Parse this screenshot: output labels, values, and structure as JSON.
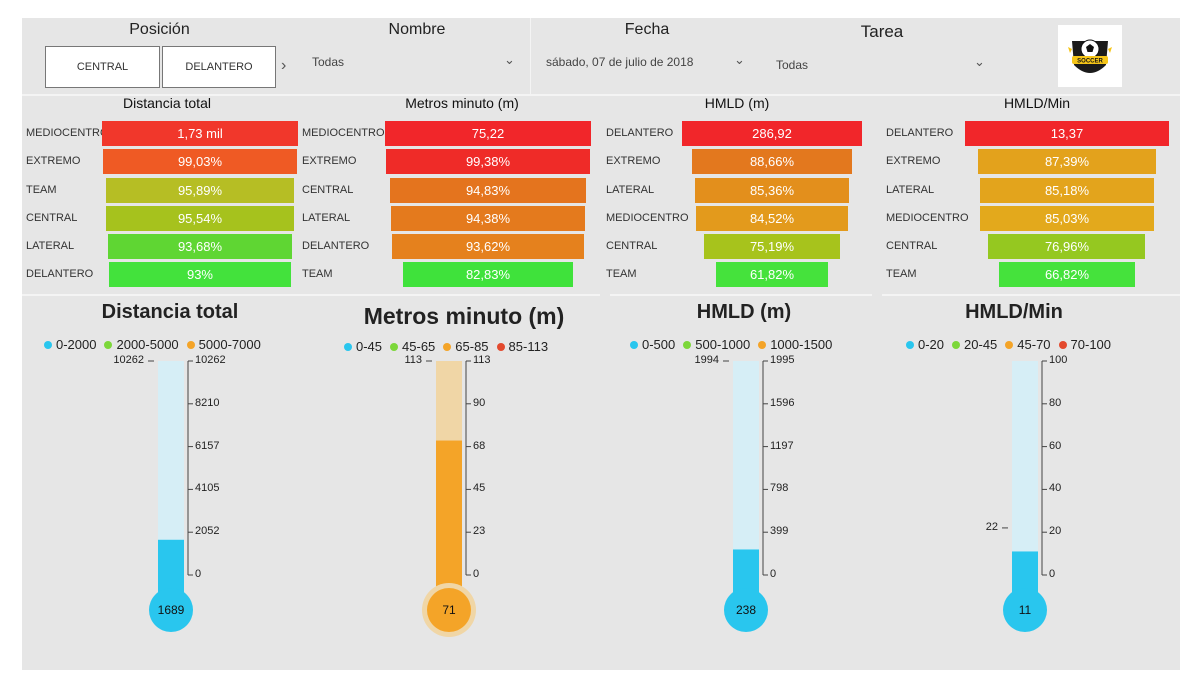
{
  "filters": {
    "posicion": {
      "label": "Posición",
      "options": [
        "CENTRAL",
        "DELANTERO"
      ]
    },
    "nombre": {
      "label": "Nombre",
      "value": "Todas"
    },
    "fecha": {
      "label": "Fecha",
      "value": "sábado, 07 de julio de 2018"
    },
    "tarea": {
      "label": "Tarea",
      "value": "Todas"
    }
  },
  "logo": {
    "icon": "soccer-ball-icon",
    "text": "SOCCER"
  },
  "chart_data": [
    {
      "type": "bar",
      "subtype": "funnel",
      "title": "Distancia total",
      "categories": [
        "MEDIOCENTRO",
        "EXTREMO",
        "TEAM",
        "CENTRAL",
        "LATERAL",
        "DELANTERO"
      ],
      "labels": [
        "1,73 mil",
        "99,03%",
        "95,89%",
        "95,54%",
        "93,68%",
        "93%"
      ],
      "values": [
        1730,
        1713,
        1659,
        1653,
        1621,
        1609
      ],
      "colors": [
        "#f1372b",
        "#ef5a24",
        "#b6be24",
        "#a6c21d",
        "#5fd633",
        "#43e23c"
      ]
    },
    {
      "type": "bar",
      "subtype": "funnel",
      "title": "Metros minuto (m)",
      "categories": [
        "MEDIOCENTRO",
        "EXTREMO",
        "CENTRAL",
        "LATERAL",
        "DELANTERO",
        "TEAM"
      ],
      "labels": [
        "75,22",
        "99,38%",
        "94,83%",
        "94,38%",
        "93,62%",
        "82,83%"
      ],
      "values": [
        75.22,
        74.75,
        71.33,
        70.99,
        70.42,
        62.3
      ],
      "colors": [
        "#f1262a",
        "#ef2b28",
        "#e4741e",
        "#e47a1d",
        "#e5811d",
        "#3fe23b"
      ]
    },
    {
      "type": "bar",
      "subtype": "funnel",
      "title": "HMLD (m)",
      "categories": [
        "DELANTERO",
        "EXTREMO",
        "LATERAL",
        "MEDIOCENTRO",
        "CENTRAL",
        "TEAM"
      ],
      "labels": [
        "286,92",
        "88,66%",
        "85,36%",
        "84,52%",
        "75,19%",
        "61,82%"
      ],
      "values": [
        286.92,
        254.38,
        244.92,
        242.5,
        215.74,
        177.38
      ],
      "colors": [
        "#f1262a",
        "#e3781e",
        "#e38f1c",
        "#e39a1c",
        "#a7c31c",
        "#45e23c"
      ]
    },
    {
      "type": "bar",
      "subtype": "funnel",
      "title": "HMLD/Min",
      "categories": [
        "DELANTERO",
        "EXTREMO",
        "LATERAL",
        "MEDIOCENTRO",
        "CENTRAL",
        "TEAM"
      ],
      "labels": [
        "13,37",
        "87,39%",
        "85,18%",
        "85,03%",
        "76,96%",
        "66,82%"
      ],
      "values": [
        13.37,
        11.68,
        11.39,
        11.37,
        10.29,
        8.93
      ],
      "colors": [
        "#f1262a",
        "#e3a21c",
        "#e3a41c",
        "#e3a91c",
        "#95c820",
        "#45e23c"
      ]
    },
    {
      "type": "bar",
      "subtype": "thermometer",
      "title": "Distancia total",
      "legend": [
        {
          "name": "0-2000",
          "color": "#29c6ee"
        },
        {
          "name": "2000-5000",
          "color": "#7cd73a"
        },
        {
          "name": "5000-7000",
          "color": "#f4a428"
        }
      ],
      "ylim": [
        0,
        10262
      ],
      "ticks": [
        "10262",
        "8210",
        "6157",
        "4105",
        "2052",
        "0"
      ],
      "max_marker": "10262",
      "value": 1689,
      "value_label": "1689",
      "color": "#29c6ee"
    },
    {
      "type": "bar",
      "subtype": "thermometer",
      "title": "Metros minuto (m)",
      "legend": [
        {
          "name": "0-45",
          "color": "#29c6ee"
        },
        {
          "name": "45-65",
          "color": "#7cd73a"
        },
        {
          "name": "65-85",
          "color": "#f4a428"
        },
        {
          "name": "85-113",
          "color": "#e34a2e"
        }
      ],
      "ylim": [
        0,
        113
      ],
      "ticks": [
        "113",
        "90",
        "68",
        "45",
        "23",
        "0"
      ],
      "max_marker": "113",
      "value": 71,
      "value_label": "71",
      "color": "#f4a428"
    },
    {
      "type": "bar",
      "subtype": "thermometer",
      "title": "HMLD (m)",
      "legend": [
        {
          "name": "0-500",
          "color": "#29c6ee"
        },
        {
          "name": "500-1000",
          "color": "#7cd73a"
        },
        {
          "name": "1000-1500",
          "color": "#f4a428"
        }
      ],
      "ylim": [
        0,
        1995
      ],
      "ticks": [
        "1995",
        "1596",
        "1197",
        "798",
        "399",
        "0"
      ],
      "max_marker": "1994",
      "value": 238,
      "value_label": "238",
      "color": "#29c6ee"
    },
    {
      "type": "bar",
      "subtype": "thermometer",
      "title": "HMLD/Min",
      "legend": [
        {
          "name": "0-20",
          "color": "#29c6ee"
        },
        {
          "name": "20-45",
          "color": "#7cd73a"
        },
        {
          "name": "45-70",
          "color": "#f4a428"
        },
        {
          "name": "70-100",
          "color": "#e34a2e"
        }
      ],
      "ylim": [
        0,
        100
      ],
      "ticks": [
        "100",
        "80",
        "60",
        "40",
        "20",
        "0"
      ],
      "max_marker": "22",
      "max_marker_value": 22,
      "value": 11,
      "value_label": "11",
      "color": "#29c6ee"
    }
  ]
}
